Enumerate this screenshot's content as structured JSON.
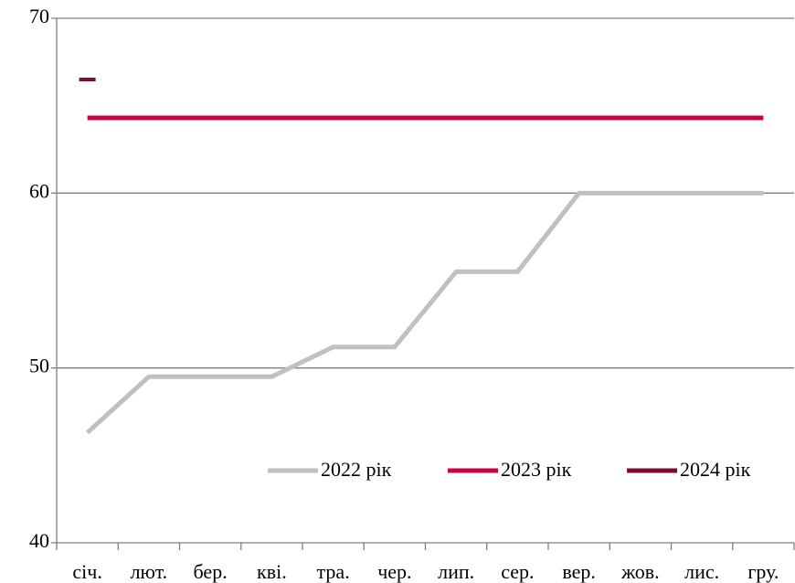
{
  "chart_data": {
    "type": "line",
    "categories": [
      "січ.",
      "лют.",
      "бер.",
      "кві.",
      "тра.",
      "чер.",
      "лип.",
      "сер.",
      "вер.",
      "жов.",
      "лис.",
      "гру."
    ],
    "series": [
      {
        "name": "2022 рік",
        "color": "#c0c0c0",
        "values": [
          46.3,
          49.5,
          49.5,
          49.5,
          51.2,
          51.2,
          55.5,
          55.5,
          60,
          60,
          60,
          60
        ]
      },
      {
        "name": "2023 рік",
        "color": "#cc0044",
        "values": [
          64.3,
          64.3,
          64.3,
          64.3,
          64.3,
          64.3,
          64.3,
          64.3,
          64.3,
          64.3,
          64.3,
          64.3
        ]
      },
      {
        "name": "2024 рік",
        "color": "#7a1030",
        "values": [
          66.5,
          null,
          null,
          null,
          null,
          null,
          null,
          null,
          null,
          null,
          null,
          null
        ]
      }
    ],
    "ylim": [
      40,
      70
    ],
    "yticks": [
      40,
      50,
      60,
      70
    ],
    "grid": true
  }
}
